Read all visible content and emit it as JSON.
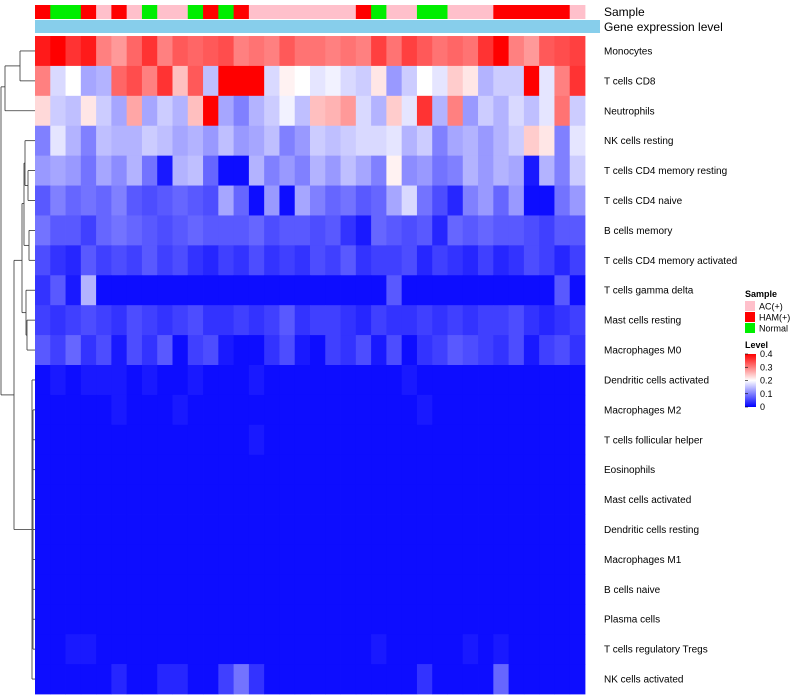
{
  "chart_data": {
    "type": "heatmap",
    "title": "",
    "annotation_tracks": [
      "Sample",
      "Gene expression level"
    ],
    "sample_groups": [
      "HAM(+)",
      "Normal",
      "Normal",
      "HAM(+)",
      "AC(+)",
      "HAM(+)",
      "AC(+)",
      "Normal",
      "AC(+)",
      "AC(+)",
      "Normal",
      "HAM(+)",
      "Normal",
      "HAM(+)",
      "AC(+)",
      "AC(+)",
      "AC(+)",
      "AC(+)",
      "AC(+)",
      "AC(+)",
      "AC(+)",
      "HAM(+)",
      "Normal",
      "AC(+)",
      "AC(+)",
      "Normal",
      "Normal",
      "AC(+)",
      "AC(+)",
      "AC(+)",
      "HAM(+)",
      "HAM(+)",
      "HAM(+)",
      "HAM(+)",
      "HAM(+)",
      "AC(+)"
    ],
    "rows": [
      "Monocytes",
      "T cells CD8",
      "Neutrophils",
      "NK cells resting",
      "T cells CD4 memory resting",
      "T cells CD4 naive",
      "B cells memory",
      "T cells CD4 memory activated",
      "T cells gamma delta",
      "Mast cells resting",
      "Macrophages M0",
      "Dendritic cells activated",
      "Macrophages M2",
      "T cells follicular helper",
      "Eosinophils",
      "Mast cells activated",
      "Dendritic cells resting",
      "Macrophages M1",
      "B cells naive",
      "Plasma cells",
      "T cells regulatory  Tregs",
      "NK cells activated"
    ],
    "values": [
      [
        0.38,
        0.42,
        0.36,
        0.38,
        0.3,
        0.28,
        0.32,
        0.36,
        0.3,
        0.33,
        0.32,
        0.33,
        0.34,
        0.3,
        0.31,
        0.3,
        0.33,
        0.31,
        0.31,
        0.3,
        0.31,
        0.3,
        0.35,
        0.31,
        0.35,
        0.33,
        0.31,
        0.32,
        0.31,
        0.36,
        0.42,
        0.3,
        0.28,
        0.33,
        0.34,
        0.35
      ],
      [
        0.3,
        0.17,
        0.2,
        0.13,
        0.14,
        0.32,
        0.34,
        0.3,
        0.36,
        0.25,
        0.33,
        0.15,
        0.4,
        0.4,
        0.4,
        0.17,
        0.21,
        0.2,
        0.18,
        0.19,
        0.17,
        0.16,
        0.22,
        0.12,
        0.16,
        0.2,
        0.18,
        0.24,
        0.22,
        0.14,
        0.16,
        0.16,
        0.4,
        0.18,
        0.3,
        0.36
      ],
      [
        0.23,
        0.16,
        0.15,
        0.22,
        0.16,
        0.13,
        0.27,
        0.13,
        0.16,
        0.14,
        0.25,
        0.4,
        0.13,
        0.1,
        0.14,
        0.16,
        0.19,
        0.15,
        0.25,
        0.26,
        0.28,
        0.17,
        0.14,
        0.24,
        0.18,
        0.36,
        0.14,
        0.3,
        0.12,
        0.16,
        0.14,
        0.17,
        0.15,
        0.18,
        0.31,
        0.16
      ],
      [
        0.1,
        0.18,
        0.14,
        0.1,
        0.15,
        0.14,
        0.14,
        0.16,
        0.15,
        0.13,
        0.14,
        0.12,
        0.15,
        0.12,
        0.13,
        0.15,
        0.1,
        0.12,
        0.16,
        0.15,
        0.16,
        0.17,
        0.17,
        0.18,
        0.14,
        0.16,
        0.1,
        0.13,
        0.14,
        0.12,
        0.14,
        0.16,
        0.24,
        0.22,
        0.1,
        0.18
      ],
      [
        0.12,
        0.13,
        0.12,
        0.09,
        0.13,
        0.11,
        0.14,
        0.09,
        0.02,
        0.14,
        0.15,
        0.08,
        0.01,
        0.01,
        0.14,
        0.1,
        0.12,
        0.1,
        0.14,
        0.12,
        0.15,
        0.13,
        0.1,
        0.21,
        0.11,
        0.12,
        0.09,
        0.1,
        0.14,
        0.12,
        0.14,
        0.13,
        0.02,
        0.14,
        0.1,
        0.16
      ],
      [
        0.07,
        0.1,
        0.08,
        0.09,
        0.08,
        0.1,
        0.07,
        0.06,
        0.07,
        0.08,
        0.07,
        0.06,
        0.13,
        0.08,
        0.01,
        0.12,
        0.01,
        0.13,
        0.1,
        0.08,
        0.09,
        0.07,
        0.08,
        0.13,
        0.17,
        0.09,
        0.06,
        0.03,
        0.1,
        0.12,
        0.08,
        0.12,
        0.01,
        0.01,
        0.09,
        0.12
      ],
      [
        0.09,
        0.07,
        0.07,
        0.05,
        0.08,
        0.09,
        0.08,
        0.07,
        0.06,
        0.07,
        0.08,
        0.07,
        0.07,
        0.07,
        0.08,
        0.06,
        0.07,
        0.07,
        0.06,
        0.07,
        0.04,
        0.02,
        0.08,
        0.07,
        0.06,
        0.07,
        0.03,
        0.08,
        0.07,
        0.08,
        0.07,
        0.07,
        0.06,
        0.05,
        0.07,
        0.07
      ],
      [
        0.06,
        0.04,
        0.03,
        0.07,
        0.05,
        0.06,
        0.05,
        0.07,
        0.05,
        0.06,
        0.04,
        0.03,
        0.05,
        0.04,
        0.06,
        0.04,
        0.05,
        0.04,
        0.06,
        0.05,
        0.07,
        0.04,
        0.05,
        0.05,
        0.06,
        0.03,
        0.05,
        0.04,
        0.03,
        0.05,
        0.03,
        0.04,
        0.06,
        0.05,
        0.03,
        0.05
      ],
      [
        0.04,
        0.07,
        0.02,
        0.14,
        0.01,
        0.01,
        0.01,
        0.01,
        0.01,
        0.01,
        0.01,
        0.01,
        0.01,
        0.01,
        0.01,
        0.01,
        0.01,
        0.01,
        0.01,
        0.01,
        0.01,
        0.01,
        0.01,
        0.07,
        0.01,
        0.01,
        0.01,
        0.01,
        0.01,
        0.01,
        0.01,
        0.01,
        0.01,
        0.01,
        0.07,
        0.01
      ],
      [
        0.05,
        0.04,
        0.05,
        0.06,
        0.05,
        0.04,
        0.06,
        0.05,
        0.04,
        0.05,
        0.06,
        0.04,
        0.04,
        0.05,
        0.04,
        0.05,
        0.07,
        0.04,
        0.05,
        0.05,
        0.04,
        0.03,
        0.05,
        0.04,
        0.04,
        0.05,
        0.04,
        0.05,
        0.04,
        0.05,
        0.05,
        0.06,
        0.04,
        0.03,
        0.04,
        0.05
      ],
      [
        0.07,
        0.05,
        0.08,
        0.04,
        0.06,
        0.02,
        0.06,
        0.04,
        0.07,
        0.01,
        0.05,
        0.06,
        0.02,
        0.01,
        0.01,
        0.04,
        0.06,
        0.02,
        0.01,
        0.05,
        0.04,
        0.06,
        0.02,
        0.06,
        0.01,
        0.04,
        0.05,
        0.07,
        0.06,
        0.05,
        0.04,
        0.06,
        0.02,
        0.05,
        0.06,
        0.04
      ],
      [
        0.01,
        0.02,
        0.01,
        0.02,
        0.02,
        0.02,
        0.01,
        0.02,
        0.01,
        0.01,
        0.02,
        0.01,
        0.01,
        0.01,
        0.02,
        0.01,
        0.01,
        0.01,
        0.01,
        0.01,
        0.01,
        0.01,
        0.01,
        0.01,
        0.02,
        0.01,
        0.01,
        0.01,
        0.01,
        0.01,
        0.01,
        0.01,
        0.01,
        0.01,
        0.01,
        0.01
      ],
      [
        0.01,
        0.01,
        0.01,
        0.01,
        0.01,
        0.02,
        0.01,
        0.01,
        0.01,
        0.02,
        0.01,
        0.01,
        0.01,
        0.01,
        0.01,
        0.01,
        0.01,
        0.01,
        0.01,
        0.01,
        0.01,
        0.01,
        0.01,
        0.01,
        0.01,
        0.02,
        0.01,
        0.01,
        0.01,
        0.01,
        0.01,
        0.01,
        0.01,
        0.01,
        0.01,
        0.01
      ],
      [
        0.01,
        0.01,
        0.01,
        0.01,
        0.01,
        0.01,
        0.01,
        0.01,
        0.01,
        0.01,
        0.01,
        0.01,
        0.01,
        0.01,
        0.02,
        0.01,
        0.01,
        0.01,
        0.01,
        0.01,
        0.01,
        0.01,
        0.01,
        0.01,
        0.01,
        0.01,
        0.01,
        0.01,
        0.01,
        0.01,
        0.01,
        0.01,
        0.01,
        0.01,
        0.01,
        0.01
      ],
      [
        0.01,
        0.01,
        0.01,
        0.01,
        0.01,
        0.01,
        0.01,
        0.01,
        0.01,
        0.01,
        0.01,
        0.01,
        0.01,
        0.01,
        0.01,
        0.01,
        0.01,
        0.01,
        0.01,
        0.01,
        0.01,
        0.01,
        0.01,
        0.01,
        0.01,
        0.01,
        0.01,
        0.01,
        0.01,
        0.01,
        0.01,
        0.01,
        0.01,
        0.01,
        0.01,
        0.01
      ],
      [
        0.01,
        0.01,
        0.01,
        0.01,
        0.01,
        0.01,
        0.01,
        0.01,
        0.01,
        0.01,
        0.01,
        0.01,
        0.01,
        0.01,
        0.01,
        0.01,
        0.01,
        0.01,
        0.01,
        0.01,
        0.01,
        0.01,
        0.01,
        0.01,
        0.01,
        0.01,
        0.01,
        0.01,
        0.01,
        0.01,
        0.01,
        0.01,
        0.01,
        0.01,
        0.01,
        0.01
      ],
      [
        0.01,
        0.01,
        0.01,
        0.01,
        0.01,
        0.01,
        0.01,
        0.01,
        0.01,
        0.01,
        0.01,
        0.01,
        0.01,
        0.01,
        0.01,
        0.01,
        0.01,
        0.01,
        0.01,
        0.01,
        0.01,
        0.01,
        0.01,
        0.01,
        0.01,
        0.01,
        0.01,
        0.01,
        0.01,
        0.01,
        0.01,
        0.01,
        0.01,
        0.01,
        0.01,
        0.01
      ],
      [
        0.01,
        0.01,
        0.01,
        0.01,
        0.01,
        0.01,
        0.01,
        0.01,
        0.01,
        0.01,
        0.01,
        0.01,
        0.01,
        0.01,
        0.01,
        0.01,
        0.01,
        0.01,
        0.01,
        0.01,
        0.01,
        0.01,
        0.01,
        0.01,
        0.01,
        0.01,
        0.01,
        0.01,
        0.01,
        0.01,
        0.01,
        0.01,
        0.01,
        0.01,
        0.01,
        0.01
      ],
      [
        0.01,
        0.01,
        0.01,
        0.01,
        0.01,
        0.01,
        0.01,
        0.01,
        0.01,
        0.01,
        0.01,
        0.01,
        0.01,
        0.01,
        0.01,
        0.01,
        0.01,
        0.01,
        0.01,
        0.01,
        0.01,
        0.01,
        0.01,
        0.01,
        0.01,
        0.01,
        0.01,
        0.01,
        0.01,
        0.01,
        0.01,
        0.01,
        0.01,
        0.01,
        0.01,
        0.01
      ],
      [
        0.01,
        0.01,
        0.01,
        0.01,
        0.01,
        0.01,
        0.01,
        0.01,
        0.01,
        0.01,
        0.01,
        0.01,
        0.01,
        0.01,
        0.01,
        0.01,
        0.01,
        0.01,
        0.01,
        0.01,
        0.01,
        0.01,
        0.01,
        0.01,
        0.01,
        0.01,
        0.01,
        0.01,
        0.01,
        0.01,
        0.01,
        0.01,
        0.01,
        0.01,
        0.01,
        0.01
      ],
      [
        0.01,
        0.01,
        0.02,
        0.02,
        0.01,
        0.01,
        0.01,
        0.01,
        0.01,
        0.01,
        0.01,
        0.01,
        0.01,
        0.01,
        0.01,
        0.01,
        0.01,
        0.01,
        0.01,
        0.01,
        0.01,
        0.01,
        0.02,
        0.01,
        0.01,
        0.01,
        0.01,
        0.01,
        0.02,
        0.01,
        0.02,
        0.01,
        0.01,
        0.01,
        0.01,
        0.01
      ],
      [
        0.01,
        0.01,
        0.01,
        0.01,
        0.01,
        0.03,
        0.01,
        0.01,
        0.03,
        0.03,
        0.01,
        0.01,
        0.05,
        0.09,
        0.04,
        0.01,
        0.01,
        0.01,
        0.01,
        0.01,
        0.01,
        0.01,
        0.01,
        0.01,
        0.01,
        0.04,
        0.01,
        0.01,
        0.01,
        0.01,
        0.08,
        0.01,
        0.01,
        0.01,
        0.01,
        0.01
      ]
    ],
    "legend": {
      "sample_title": "Sample",
      "sample_entries": [
        {
          "label": "AC(+)",
          "color": "#ffc0cb"
        },
        {
          "label": "HAM(+)",
          "color": "#ff0000"
        },
        {
          "label": "Normal",
          "color": "#00ee00"
        }
      ],
      "level_title": "Level",
      "level_ticks": [
        "0.4",
        "0.3",
        "0.2",
        "0.1",
        "0"
      ],
      "level_range": [
        0,
        0.4
      ],
      "placement": "right"
    },
    "colors": {
      "low": "#0000ff",
      "mid": "#ffffff",
      "high": "#ff0000",
      "expression_track": "#87ceeb"
    }
  }
}
